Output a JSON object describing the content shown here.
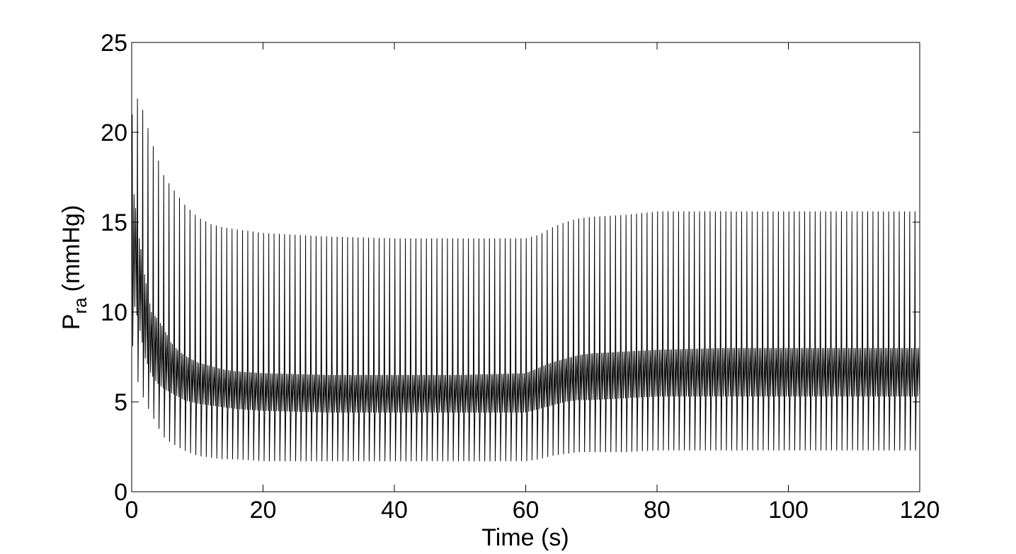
{
  "chart_data": {
    "type": "line",
    "title": "",
    "xlabel": "Time (s)",
    "ylabel": {
      "symbol": "P",
      "subscript": "ra",
      "unit": "(mmHg)"
    },
    "xlim": [
      0,
      120
    ],
    "ylim": [
      0,
      25
    ],
    "xticks": [
      0,
      20,
      40,
      60,
      80,
      100,
      120
    ],
    "yticks": [
      0,
      5,
      10,
      15,
      20,
      25
    ],
    "grid": false,
    "legend": "none",
    "line_color": "#000000",
    "series": [
      {
        "description_time_s": [
          0,
          1,
          2,
          3,
          4,
          5,
          6,
          7,
          8,
          10,
          12,
          14,
          16,
          20,
          30,
          40,
          50,
          60,
          62,
          64,
          66,
          68,
          70,
          75,
          80,
          90,
          100,
          110,
          120
        ],
        "max_envelope": [
          20.9,
          22.0,
          20.9,
          19.5,
          18.5,
          17.5,
          17.0,
          16.5,
          16.0,
          15.3,
          14.9,
          14.7,
          14.6,
          14.4,
          14.2,
          14.1,
          14.1,
          14.1,
          14.3,
          14.7,
          15.0,
          15.2,
          15.3,
          15.4,
          15.6,
          15.6,
          15.6,
          15.6,
          15.6
        ],
        "min_envelope": [
          8.5,
          6.0,
          5.0,
          4.3,
          3.6,
          3.0,
          2.7,
          2.5,
          2.3,
          2.0,
          1.9,
          1.8,
          1.8,
          1.7,
          1.7,
          1.7,
          1.7,
          1.7,
          1.8,
          2.0,
          2.1,
          2.2,
          2.2,
          2.2,
          2.3,
          2.3,
          2.3,
          2.3,
          2.3
        ],
        "mid_upper": [
          17.7,
          14.5,
          12.0,
          10.0,
          9.6,
          9.0,
          8.3,
          7.9,
          7.6,
          7.2,
          7.0,
          6.8,
          6.7,
          6.6,
          6.5,
          6.5,
          6.5,
          6.6,
          6.9,
          7.2,
          7.4,
          7.6,
          7.7,
          7.8,
          7.9,
          8.0,
          8.0,
          8.0,
          8.0
        ],
        "mid_lower": [
          11.0,
          9.5,
          7.5,
          6.5,
          6.0,
          5.7,
          5.5,
          5.3,
          5.1,
          4.9,
          4.8,
          4.7,
          4.6,
          4.5,
          4.4,
          4.4,
          4.4,
          4.4,
          4.6,
          4.8,
          5.0,
          5.1,
          5.1,
          5.2,
          5.3,
          5.3,
          5.3,
          5.3,
          5.3
        ],
        "beat_period_s": 0.8
      }
    ]
  }
}
